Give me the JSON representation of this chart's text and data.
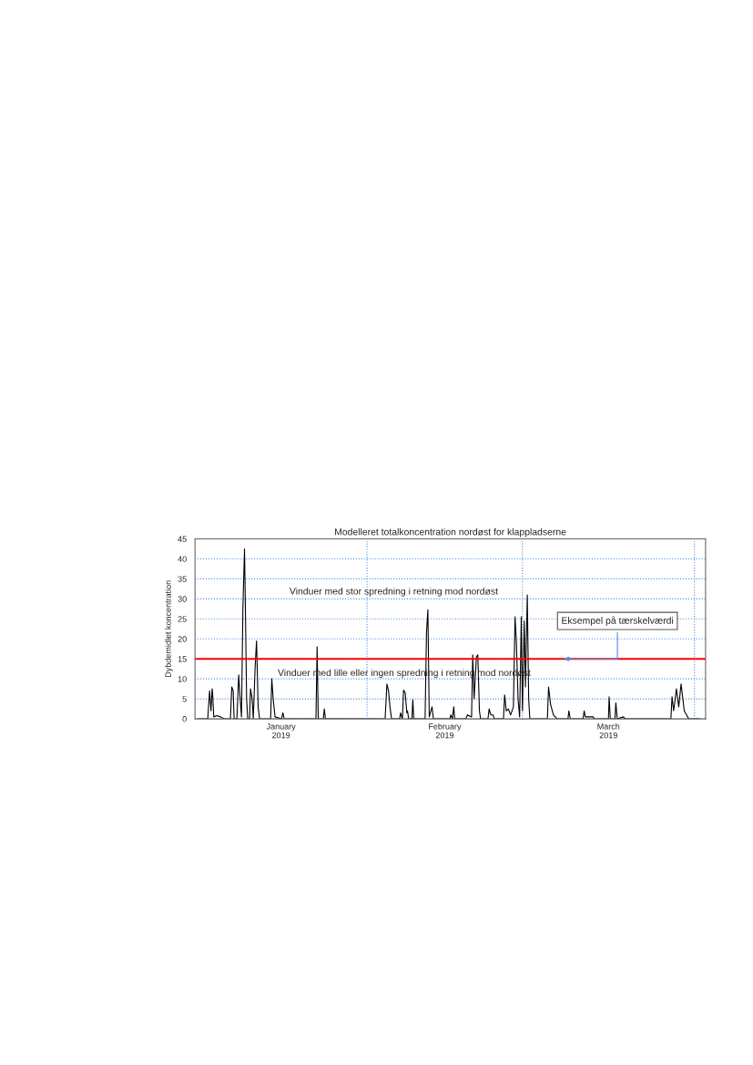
{
  "chart_data": {
    "type": "line",
    "title": "Modelleret totalkoncentration nordøst for klappladserne",
    "ylabel": "Dybdemidlet koncentration",
    "x": [
      "2019-01-01T12:00",
      "2019-01-03T07:00",
      "2019-01-03T15:00",
      "2019-01-03T21:00",
      "2019-01-04T02:00",
      "2019-01-04T04:00",
      "2019-01-04T09:00",
      "2019-01-04T22:00",
      "2019-01-05T14:00",
      "2019-01-06T06:00",
      "2019-01-07T09:00",
      "2019-01-07T15:00",
      "2019-01-07T21:00",
      "2019-01-08T01:00",
      "2019-01-08T13:00",
      "2019-01-08T21:00",
      "2019-01-09T02:00",
      "2019-01-09T09:00",
      "2019-01-09T15:00",
      "2019-01-09T22:00",
      "2019-01-10T02:00",
      "2019-01-10T07:00",
      "2019-01-10T12:00",
      "2019-01-10T20:00",
      "2019-01-11T00:00",
      "2019-01-11T07:00",
      "2019-01-11T12:00",
      "2019-01-11T20:00",
      "2019-01-12T02:00",
      "2019-01-12T09:00",
      "2019-01-12T15:00",
      "2019-01-14T15:00",
      "2019-01-14T20:00",
      "2019-01-15T02:00",
      "2019-01-15T10:00",
      "2019-01-16T14:00",
      "2019-01-16T20:00",
      "2019-01-17T02:00",
      "2019-01-22T19:00",
      "2019-01-23T00:00",
      "2019-01-23T05:00",
      "2019-01-24T03:00",
      "2019-01-24T07:00",
      "2019-01-24T12:00",
      "2019-02-04T06:00",
      "2019-02-04T14:00",
      "2019-02-04T21:00",
      "2019-02-05T03:00",
      "2019-02-05T10:00",
      "2019-02-06T21:00",
      "2019-02-07T01:00",
      "2019-02-07T09:00",
      "2019-02-07T14:00",
      "2019-02-07T21:00",
      "2019-02-08T04:00",
      "2019-02-08T07:00",
      "2019-02-08T12:00",
      "2019-02-09T02:00",
      "2019-02-09T06:00",
      "2019-02-09T10:00",
      "2019-02-11T11:00",
      "2019-02-11T17:00",
      "2019-02-11T23:00",
      "2019-02-12T05:00",
      "2019-02-12T17:00",
      "2019-02-12T23:00",
      "2019-02-15T22:00",
      "2019-02-16T02:00",
      "2019-02-16T09:00",
      "2019-02-16T15:00",
      "2019-02-16T19:00",
      "2019-02-18T20:00",
      "2019-02-19T02:00",
      "2019-02-19T20:00",
      "2019-02-20T01:00",
      "2019-02-20T07:00",
      "2019-02-20T17:00",
      "2019-02-20T23:00",
      "2019-02-21T06:00",
      "2019-02-21T11:00",
      "2019-02-22T19:00",
      "2019-02-23T00:00",
      "2019-02-23T07:00",
      "2019-02-23T17:00",
      "2019-02-23T22:00",
      "2019-02-25T14:00",
      "2019-02-25T19:00",
      "2019-02-26T02:00",
      "2019-02-26T11:00",
      "2019-02-26T21:00",
      "2019-02-27T09:00",
      "2019-02-27T16:00",
      "2019-02-27T22:00",
      "2019-02-28T05:00",
      "2019-02-28T12:00",
      "2019-02-28T19:00",
      "2019-03-01T00:00",
      "2019-03-01T08:00",
      "2019-03-01T13:00",
      "2019-03-01T21:00",
      "2019-03-02T03:00",
      "2019-03-02T08:00",
      "2019-03-05T12:00",
      "2019-03-05T17:00",
      "2019-03-06T02:00",
      "2019-03-06T14:00",
      "2019-03-07T06:00",
      "2019-03-09T05:00",
      "2019-03-09T09:00",
      "2019-03-09T15:00",
      "2019-03-11T22:00",
      "2019-03-12T03:00",
      "2019-03-12T08:00",
      "2019-03-13T18:00",
      "2019-03-13T23:00",
      "2019-03-16T12:00",
      "2019-03-16T15:00",
      "2019-03-16T20:00",
      "2019-03-17T16:00",
      "2019-03-17T20:00",
      "2019-03-18T02:00",
      "2019-03-19T05:00",
      "2019-03-19T13:00",
      "2019-03-27T18:00",
      "2019-03-27T23:00",
      "2019-03-28T06:00",
      "2019-03-28T18:00",
      "2019-03-29T04:00",
      "2019-03-29T14:00",
      "2019-03-30T04:00",
      "2019-03-30T23:00",
      "2019-04-02T00:00"
    ],
    "series": [
      {
        "color": "#000000",
        "values": [
          0,
          0,
          7,
          2,
          7.5,
          6.5,
          0.5,
          0.8,
          0.5,
          0,
          0,
          8,
          7,
          0,
          0,
          11,
          6,
          0.5,
          27.5,
          42.5,
          27,
          5,
          0,
          0,
          7.5,
          5,
          0,
          13,
          19.5,
          3,
          0,
          0,
          10,
          5,
          0.5,
          0,
          1.5,
          0,
          0,
          18,
          0,
          0,
          2.5,
          0,
          0,
          8.7,
          7,
          3,
          0,
          0,
          1.5,
          0,
          7.2,
          6.5,
          1.5,
          2,
          0,
          0,
          4.8,
          0,
          0,
          21.5,
          27.3,
          0.5,
          3,
          0,
          0,
          1,
          0,
          3,
          0,
          0,
          1,
          0.5,
          16,
          5,
          15.5,
          16,
          2,
          0,
          0,
          2.5,
          1,
          1,
          0,
          0,
          6,
          2,
          2.5,
          1,
          3,
          25.5,
          19,
          5,
          0.5,
          25.5,
          2,
          24.5,
          8,
          31,
          5,
          0,
          0,
          8,
          3.5,
          1,
          0,
          0,
          2,
          0,
          0,
          2,
          0.5,
          0.5,
          0,
          0,
          5.5,
          0,
          0,
          4,
          0,
          0.5,
          0,
          0,
          5.5,
          2,
          7.5,
          3,
          8.7,
          2,
          0,
          0
        ]
      }
    ],
    "xlim": [
      "2019-01-01",
      "2019-04-03"
    ],
    "xticks": [
      {
        "value": "2019-01-16T12:00",
        "label": "January\n2019"
      },
      {
        "value": "2019-02-15",
        "label": "February\n2019"
      },
      {
        "value": "2019-03-16T12:00",
        "label": "March\n2019"
      }
    ],
    "ylim": [
      0,
      45
    ],
    "yticks": [
      0,
      5,
      10,
      15,
      20,
      25,
      30,
      35,
      40,
      45
    ],
    "grid": "y",
    "ref_lines": [
      {
        "axis": "y",
        "value": 15,
        "color": "#ff0000",
        "line_style": "solid"
      },
      {
        "axis": "x",
        "value": "2019-02-01",
        "color": "#4a90e2",
        "line_style": "dotted"
      },
      {
        "axis": "x",
        "value": "2019-03-01",
        "color": "#4a90e2",
        "line_style": "dotted"
      },
      {
        "axis": "x",
        "value": "2019-04-01",
        "color": "#4a90e2",
        "line_style": "dotted"
      }
    ],
    "annotations": [
      "Vinduer med stor spredning i retning mod nordøst",
      "Vinduer med lille eller ingen spredning i retning mod nordøst",
      {
        "text": "Eksempel på tærskelværdi",
        "x": "2019-03-08",
        "y": 15
      }
    ]
  }
}
